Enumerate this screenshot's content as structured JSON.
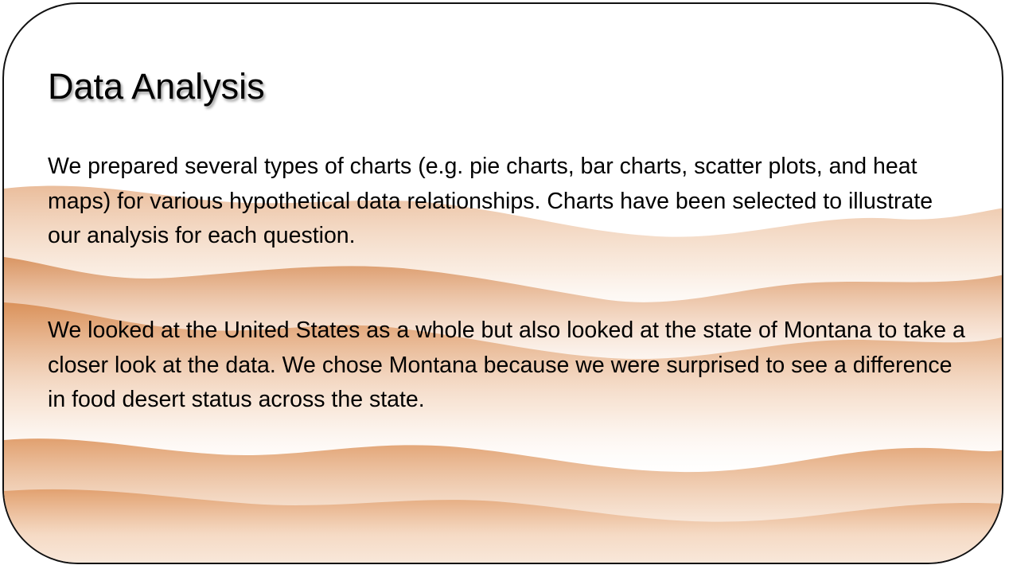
{
  "slide": {
    "title": "Data Analysis",
    "paragraphs": [
      "We prepared several types of charts (e.g. pie charts, bar charts, scatter plots, and heat maps) for various hypothetical data relationships.  Charts have been selected to illustrate our analysis for each question.",
      "We looked at the United States as a whole but also looked at the state of Montana to take a closer look at the data. We chose Montana because we were surprised to see  a difference in food desert status across the state."
    ]
  },
  "theme": {
    "background": "#ffffff",
    "dune_color": "#d9874a",
    "border_color": "#111111",
    "text_color": "#000000"
  }
}
